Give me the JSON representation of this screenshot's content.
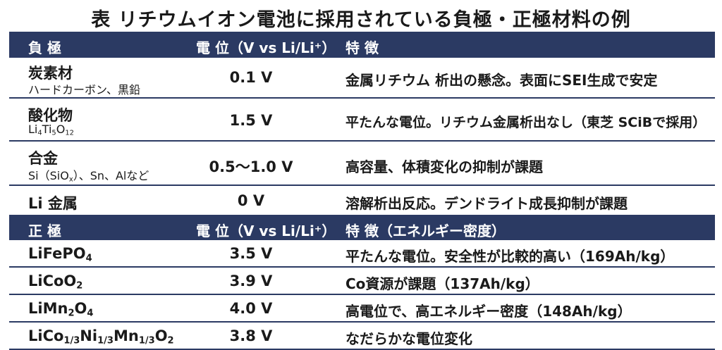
{
  "title": "表 リチウムイオン電池に採用されている負極・正極材料の例",
  "anode_header": {
    "col1": "負 極",
    "col2": "電 位（V vs Li/Li⁺）",
    "col3": "特 徴"
  },
  "anode_rows": [
    {
      "name": "炭素材",
      "sub": "ハードカーボン、黒鉛",
      "potential": "0.1 V",
      "feature": "金属リチウム 析出の懸念。表面にSEI生成で安定"
    },
    {
      "name": "酸化物",
      "sub": "Li₄Ti₅O₁₂",
      "potential": "1.5 V",
      "feature": "平たんな電位。リチウム金属析出なし（東芝 SCiBで採用）"
    },
    {
      "name": "合金",
      "sub": "Si（SiOₓ）、Sn、Alなど",
      "potential": "0.5～1.0 V",
      "feature": "高容量、体積変化の抑制が課題"
    },
    {
      "name": "Li 金属",
      "sub": "",
      "potential": "0 V",
      "feature": "溶解析出反応。デンドライト成長抑制が課題"
    }
  ],
  "cathode_header": {
    "col1": "正 極",
    "col2": "電 位（V vs Li/Li⁺）",
    "col3": "特 徴（エネルギー密度）"
  },
  "cathode_rows": [
    {
      "name": "LiFePO₄",
      "potential": "3.5 V",
      "feature": "平たんな電位。安全性が比較的高い（169Ah/kg）"
    },
    {
      "name": "LiCoO₂",
      "potential": "3.9 V",
      "feature": "Co資源が課題（137Ah/kg）"
    },
    {
      "name": "LiMn₂O₄",
      "potential": "4.0 V",
      "feature": "高電位で、高エネルギー密度（148Ah/kg）"
    },
    {
      "name": "LiCo₁/₃Ni₁/₃Mn₁/₃O₂",
      "potential": "3.8 V",
      "feature": "なだらかな電位変化"
    }
  ],
  "colors": {
    "header_bg": "#2b3a63",
    "header_text": "#ffffff",
    "rule": "#2b3a63"
  }
}
